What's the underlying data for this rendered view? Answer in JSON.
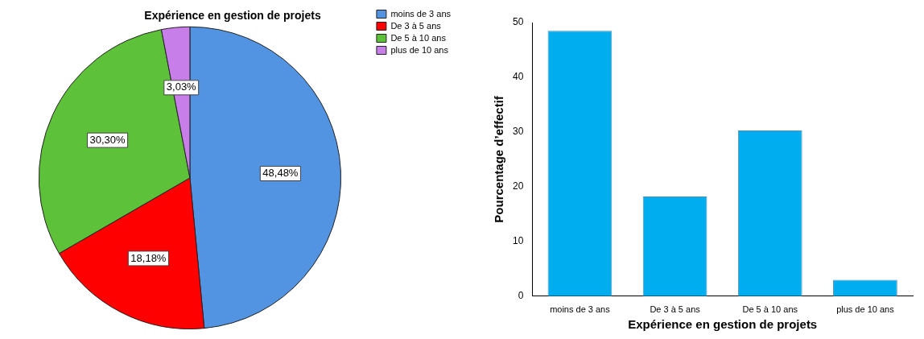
{
  "chart_data": [
    {
      "type": "pie",
      "title": "Expérience en gestion de projets",
      "categories": [
        "moins de 3 ans",
        "De 3 à 5 ans",
        "De 5 à 10 ans",
        "plus de 10 ans"
      ],
      "values": [
        48.48,
        18.18,
        30.3,
        3.03
      ],
      "colors": [
        "#5294e2",
        "#ff0000",
        "#5ec13a",
        "#c77ee8"
      ],
      "value_labels": [
        "48,48%",
        "18,18%",
        "30,30%",
        "3,03%"
      ],
      "legend": "top right"
    },
    {
      "type": "bar",
      "categories": [
        "moins de 3 ans",
        "De 3 à 5 ans",
        "De 5 à 10 ans",
        "plus de 10 ans"
      ],
      "values": [
        48.5,
        18.2,
        30.3,
        3
      ],
      "color": "#00aeef",
      "xlabel": "Expérience en gestion de projets",
      "ylabel": "Pourcentage d’effectif",
      "ylim": [
        0,
        50
      ],
      "yticks": [
        0,
        10,
        20,
        30,
        40,
        50
      ],
      "grid": false,
      "legend": false
    }
  ]
}
